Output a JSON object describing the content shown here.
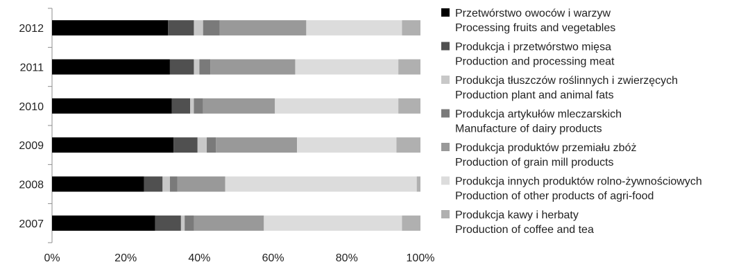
{
  "chart_data": {
    "type": "bar",
    "orientation": "horizontal",
    "stacked": true,
    "percent_stacked": true,
    "title": "",
    "xlabel": "",
    "ylabel": "",
    "xlim": [
      0,
      100
    ],
    "x_ticks": [
      "0%",
      "20%",
      "40%",
      "60%",
      "80%",
      "100%"
    ],
    "x_tick_values": [
      0,
      20,
      40,
      60,
      80,
      100
    ],
    "grid": false,
    "legend_position": "right",
    "categories": [
      "2012",
      "2011",
      "2010",
      "2009",
      "2008",
      "2007"
    ],
    "series": [
      {
        "name": "Przetwórstwo owoców i warzyw",
        "name_en": "Processing fruits and vegetables",
        "color": "#000000",
        "values": [
          31.5,
          32.0,
          32.5,
          33.0,
          25.0,
          28.0
        ]
      },
      {
        "name": "Produkcja i przetwórstwo mięsa",
        "name_en": "Production and processing meat",
        "color": "#505050",
        "values": [
          7.0,
          6.5,
          5.0,
          6.5,
          5.0,
          7.0
        ]
      },
      {
        "name": "Produkcja tłuszczów roślinnych i zwierzęcych",
        "name_en": "Production plant and animal fats",
        "color": "#c8c8c8",
        "values": [
          2.5,
          1.5,
          1.0,
          2.5,
          2.0,
          1.0
        ]
      },
      {
        "name": "Produkcja artykułów mleczarskich",
        "name_en": "Manufacture of dairy products",
        "color": "#7a7a7a",
        "values": [
          4.5,
          3.0,
          2.5,
          2.5,
          2.0,
          2.5
        ]
      },
      {
        "name": "Produkcja produktów przemiału zbóż",
        "name_en": "Production of grain mill products",
        "color": "#999999",
        "values": [
          23.5,
          23.0,
          19.5,
          22.0,
          13.0,
          19.0
        ]
      },
      {
        "name": "Produkcja innych produktów rolno-żywnościowych",
        "name_en": "Production of other products of agri-food",
        "color": "#dcdcdc",
        "values": [
          26.0,
          28.0,
          33.5,
          27.0,
          52.0,
          37.5
        ]
      },
      {
        "name": "Produkcja kawy i herbaty",
        "name_en": "Production of coffee and tea",
        "color": "#b0b0b0",
        "values": [
          5.0,
          6.0,
          6.0,
          6.5,
          1.0,
          5.0
        ]
      }
    ]
  }
}
